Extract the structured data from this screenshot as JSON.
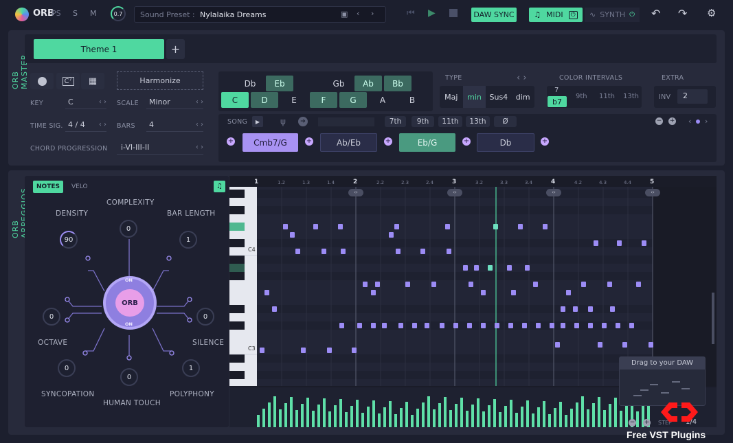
{
  "header": {
    "logo": "ORB",
    "logo_suffix": "PS",
    "mode_s": "S",
    "mode_m": "M",
    "master_knob": "0.7",
    "preset_label": "Sound Preset :",
    "preset_value": "Nylalaika Dreams",
    "daw_sync": "DAW SYNC",
    "midi": "MIDI",
    "synth": "SYNTH"
  },
  "master": {
    "tab_label": "ORB MASTER",
    "theme": "Theme 1",
    "add": "+",
    "harmonize": "Harmonize",
    "key_label": "KEY",
    "key_value": "C",
    "scale_label": "SCALE",
    "scale_value": "Minor",
    "timesig_label": "TIME SIG.",
    "timesig_value": "4 / 4",
    "bars_label": "BARS",
    "bars_value": "4",
    "progression_label": "CHORD PROGRESSION",
    "progression_value": "i-VI-III-II",
    "sharps": [
      "Db",
      "Eb",
      "Gb",
      "Ab",
      "Bb"
    ],
    "naturals": [
      "C",
      "D",
      "E",
      "F",
      "G",
      "A",
      "B"
    ],
    "type_label": "TYPE",
    "types": [
      "Maj",
      "min",
      "Sus4",
      "dim"
    ],
    "color_label": "COLOR INTERVALS",
    "color_top": "7",
    "color_sel": "b7",
    "colors": [
      "9th",
      "11th",
      "13th"
    ],
    "extra_label": "EXTRA",
    "inv_label": "INV",
    "inv_value": "2",
    "song_label": "SONG",
    "ext": [
      "7th",
      "9th",
      "11th",
      "13th",
      "Ø"
    ],
    "chords": [
      "Cmb7/G",
      "Ab/Eb",
      "Eb/G",
      "Db"
    ]
  },
  "arp": {
    "tab_label": "ORB ARPEGGIOS",
    "notes_tab": "NOTES",
    "velo_tab": "VELO",
    "density": "DENSITY",
    "density_val": "90",
    "complexity": "COMPLEXITY",
    "complexity_val": "0",
    "barlength": "BAR LENGTH",
    "barlength_val": "1",
    "octave": "OCTAVE",
    "octave_val": "0",
    "silence": "SILENCE",
    "silence_val": "0",
    "syncopation": "SYNCOPATION",
    "syncopation_val": "0",
    "human": "HUMAN TOUCH",
    "human_val": "0",
    "polyphony": "POLYPHONY",
    "polyphony_val": "1",
    "orb": "ORB",
    "on_top": "ON",
    "on_bottom": "ON"
  },
  "roll": {
    "bars": [
      "1",
      "2",
      "3",
      "4",
      "5"
    ],
    "subs": [
      "1.2",
      "1.3",
      "1.4",
      "2.2",
      "2.3",
      "2.4",
      "3.2",
      "3.3",
      "3.4",
      "4.2",
      "4.3",
      "4.4"
    ],
    "c4": "C4",
    "c3": "C3",
    "drag": "Drag to your DAW",
    "step_label": "STEP",
    "step_value": "1/4"
  },
  "watermark": "Free VST Plugins"
}
